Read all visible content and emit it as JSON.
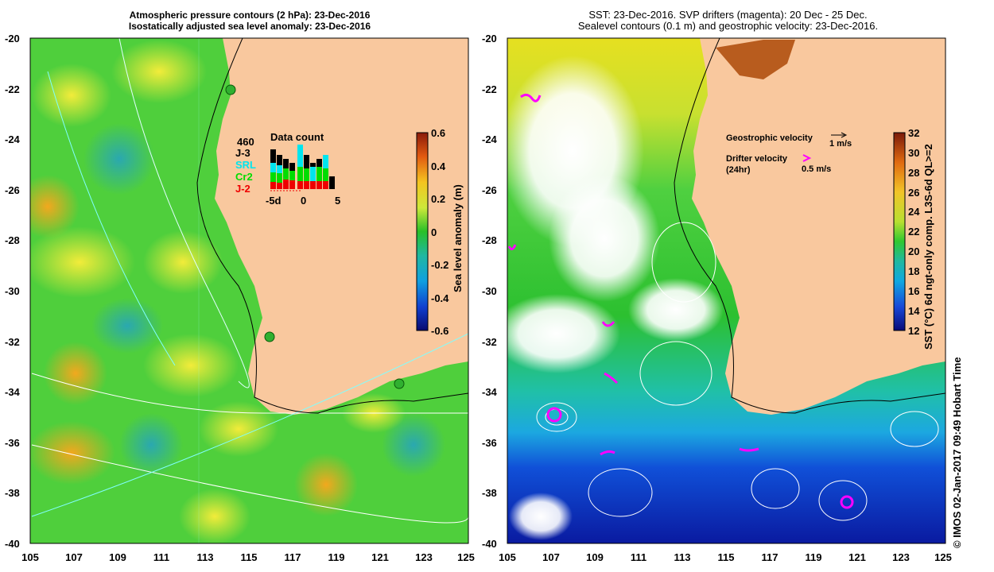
{
  "left_panel": {
    "title_line1": "Atmospheric pressure contours (2 hPa): 23-Dec-2016",
    "title_line2": "Isostatically adjusted sea level anomaly: 23-Dec-2016",
    "lat_labels": [
      "-20",
      "-22",
      "-24",
      "-26",
      "-28",
      "-30",
      "-32",
      "-34",
      "-36",
      "-38",
      "-40"
    ],
    "lon_labels": [
      "105",
      "107",
      "109",
      "111",
      "113",
      "115",
      "117",
      "119",
      "121",
      "123",
      "125"
    ],
    "colorbar": {
      "title": "Sea level anomaly (m)",
      "ticks": [
        "0.6",
        "0.4",
        "0.2",
        "0",
        "-0.2",
        "-0.4",
        "-0.6"
      ]
    },
    "data_count": {
      "title": "Data count",
      "total": "460",
      "missions": [
        {
          "name": "J-3",
          "color": "#000000"
        },
        {
          "name": "SRL",
          "color": "#00e5ee"
        },
        {
          "name": "Cr2",
          "color": "#00dd00"
        },
        {
          "name": "J-2",
          "color": "#ee0000"
        }
      ],
      "x_ticks": [
        "-5d",
        "0",
        "5"
      ]
    }
  },
  "right_panel": {
    "title_line1": "SST: 23-Dec-2016. SVP drifters (magenta): 20 Dec - 25 Dec.",
    "title_line2": "Sealevel contours (0.1 m) and geostrophic velocity: 23-Dec-2016.",
    "lat_labels": [
      "-20",
      "-22",
      "-24",
      "-26",
      "-28",
      "-30",
      "-32",
      "-34",
      "-36",
      "-38",
      "-40"
    ],
    "lon_labels": [
      "105",
      "107",
      "109",
      "111",
      "113",
      "115",
      "117",
      "119",
      "121",
      "123",
      "125"
    ],
    "colorbar": {
      "title": "SST (°C) 6d ngt-only comp. L3S-6d QL>=2",
      "ticks": [
        "32",
        "30",
        "28",
        "26",
        "24",
        "22",
        "20",
        "18",
        "16",
        "14",
        "12"
      ]
    },
    "legend": {
      "geo_label": "Geostrophic velocity",
      "geo_speed": "1 m/s",
      "drifter_label_1": "Drifter velocity",
      "drifter_label_2": "(24hr)",
      "drifter_speed": "0.5 m/s"
    }
  },
  "footer": {
    "credit": "© IMOS 02-Jan-2017 09:49 Hobart Time"
  },
  "colors": {
    "land": "#f9c89e",
    "ocean_green": "#3ccf3c",
    "anomaly_high": "#f2ec3a",
    "anomaly_low": "#2ab8a8",
    "sst_warm": "#e0e020",
    "sst_cool": "#1a4fd0",
    "drifter": "#ff00ff"
  }
}
